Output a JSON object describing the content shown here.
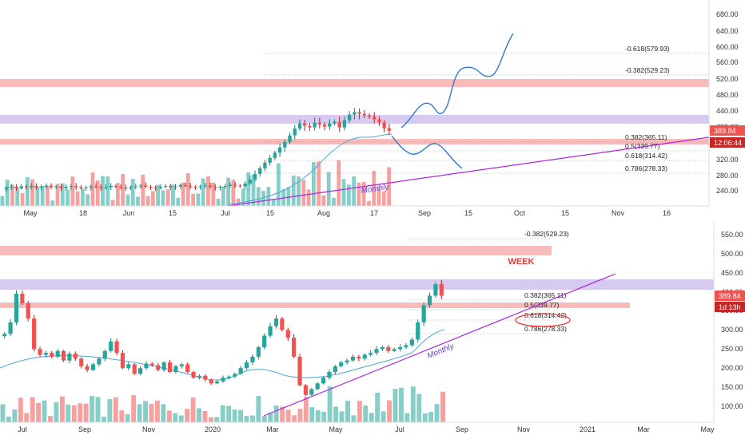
{
  "colors": {
    "up": "#26a69a",
    "down": "#ef5350",
    "red_zone": "#f7a3a3",
    "purple_zone": "#c9b8ec",
    "trendline": "#b026e0",
    "ma": "#4aa7d8",
    "projection": "#2f78d1",
    "label_red": "#e53935"
  },
  "chart_data": [
    {
      "type": "candlestick",
      "timeframe": "Daily",
      "ylim": [
        205,
        700
      ],
      "y_ticks": [
        "680.00",
        "640.00",
        "600.00",
        "560.00",
        "520.00",
        "480.00",
        "440.00",
        "400.00",
        "360.00",
        "320.00",
        "280.00",
        "240.00"
      ],
      "y_tick_values": [
        680,
        640,
        600,
        560,
        520,
        480,
        440,
        400,
        360,
        320,
        280,
        240
      ],
      "x_ticks": [
        "May",
        "18",
        "Jun",
        "15",
        "Jul",
        "15",
        "Aug",
        "17",
        "Sep",
        "15",
        "Oct",
        "15",
        "Nov",
        "16"
      ],
      "price_label": "389.84",
      "countdown_label": "12:06:44",
      "zones": [
        {
          "color": "red",
          "low": 505,
          "high": 525
        },
        {
          "color": "purple",
          "low": 412,
          "high": 436
        },
        {
          "color": "red",
          "low": 364,
          "high": 378
        }
      ],
      "fib_levels": [
        {
          "label": "-0.618(579.93)",
          "value": 579.93
        },
        {
          "label": "-0.382(529.23)",
          "value": 529.23
        },
        {
          "label": "0.382(365.11)",
          "value": 365.11
        },
        {
          "label": "0.5(339.77)",
          "value": 339.77
        },
        {
          "label": "0.618(314.42)",
          "value": 314.42
        },
        {
          "label": "0.786(278.33)",
          "value": 278.33
        }
      ],
      "trendline_label": "Monthly",
      "series": [
        {
          "name": "price",
          "closes": [
            248,
            250,
            246,
            251,
            249,
            252,
            248,
            250,
            253,
            249,
            251,
            247,
            250,
            252,
            249,
            246,
            248,
            251,
            250,
            247,
            249,
            252,
            250,
            248,
            246,
            249,
            251,
            253,
            250,
            248,
            247,
            250,
            252,
            249,
            251,
            254,
            252,
            250,
            249,
            251,
            253,
            250,
            248,
            250,
            252,
            255,
            253,
            251,
            258,
            268,
            282,
            296,
            310,
            322,
            335,
            348,
            362,
            378,
            395,
            408,
            402,
            398,
            410,
            405,
            400,
            408,
            412,
            398,
            416,
            430,
            436,
            432,
            428,
            425,
            418,
            410,
            396,
            389.84
          ]
        }
      ]
    },
    {
      "type": "candlestick",
      "timeframe": "Weekly",
      "title": "WEEK",
      "ylim": [
        80,
        590
      ],
      "y_ticks": [
        "550.00",
        "500.00",
        "450.00",
        "400.00",
        "350.00",
        "300.00",
        "250.00",
        "200.00",
        "150.00",
        "100.00"
      ],
      "y_tick_values": [
        550,
        500,
        450,
        400,
        350,
        300,
        250,
        200,
        150,
        100
      ],
      "x_ticks": [
        "Jul",
        "Sep",
        "Nov",
        "2020",
        "Mar",
        "May",
        "Jul",
        "Sep",
        "Nov",
        "2021",
        "Mar",
        "May"
      ],
      "price_label": "389.84",
      "countdown_label": "1d 13h",
      "zones": [
        {
          "color": "red",
          "low": 495,
          "high": 517
        },
        {
          "color": "purple",
          "low": 403,
          "high": 428
        },
        {
          "color": "red",
          "low": 357,
          "high": 372
        }
      ],
      "fib_levels": [
        {
          "label": "-0.382(529.23)",
          "value": 529.23
        },
        {
          "label": "0.382(365.11)",
          "value": 365.11
        },
        {
          "label": "0.5(339.77)",
          "value": 339.77
        },
        {
          "label": "0.618(314.42)",
          "value": 314.42
        },
        {
          "label": "0.786(278.33)",
          "value": 278.33
        }
      ],
      "trendline_label": "Monthly",
      "series": [
        {
          "name": "price",
          "closes": [
            290,
            320,
            395,
            370,
            330,
            250,
            235,
            240,
            230,
            245,
            220,
            238,
            225,
            205,
            195,
            210,
            225,
            245,
            270,
            240,
            200,
            210,
            185,
            200,
            212,
            208,
            195,
            215,
            190,
            205,
            210,
            190,
            175,
            180,
            170,
            160,
            165,
            175,
            178,
            185,
            200,
            215,
            230,
            255,
            285,
            310,
            330,
            300,
            280,
            230,
            155,
            130,
            145,
            160,
            175,
            190,
            205,
            215,
            220,
            230,
            225,
            235,
            240,
            250,
            255,
            245,
            250,
            255,
            260,
            275,
            320,
            365,
            390,
            420,
            389.84
          ]
        }
      ]
    }
  ]
}
